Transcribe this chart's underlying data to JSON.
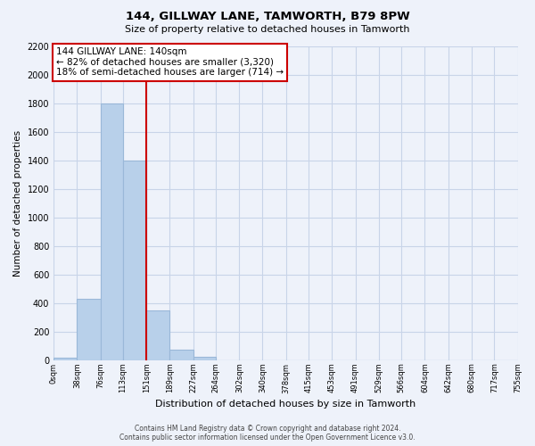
{
  "title": "144, GILLWAY LANE, TAMWORTH, B79 8PW",
  "subtitle": "Size of property relative to detached houses in Tamworth",
  "xlabel": "Distribution of detached houses by size in Tamworth",
  "ylabel": "Number of detached properties",
  "bar_edges": [
    0,
    38,
    76,
    113,
    151,
    189,
    227,
    264,
    302,
    340,
    378,
    415,
    453,
    491,
    529,
    566,
    604,
    642,
    680,
    717,
    755
  ],
  "bar_heights": [
    20,
    430,
    1800,
    1400,
    350,
    75,
    25,
    0,
    0,
    0,
    0,
    0,
    0,
    0,
    0,
    0,
    0,
    0,
    0,
    0
  ],
  "bar_color": "#b8d0ea",
  "bar_edgecolor": "#9ab8d8",
  "grid_color": "#c8d4e8",
  "background_color": "#eef2fa",
  "vline_x": 151,
  "vline_color": "#cc0000",
  "ylim": [
    0,
    2200
  ],
  "yticks": [
    0,
    200,
    400,
    600,
    800,
    1000,
    1200,
    1400,
    1600,
    1800,
    2000,
    2200
  ],
  "xtick_labels": [
    "0sqm",
    "38sqm",
    "76sqm",
    "113sqm",
    "151sqm",
    "189sqm",
    "227sqm",
    "264sqm",
    "302sqm",
    "340sqm",
    "378sqm",
    "415sqm",
    "453sqm",
    "491sqm",
    "529sqm",
    "566sqm",
    "604sqm",
    "642sqm",
    "680sqm",
    "717sqm",
    "755sqm"
  ],
  "annotation_title": "144 GILLWAY LANE: 140sqm",
  "annotation_line1": "← 82% of detached houses are smaller (3,320)",
  "annotation_line2": "18% of semi-detached houses are larger (714) →",
  "annotation_box_color": "#ffffff",
  "annotation_box_edgecolor": "#cc0000",
  "footer_line1": "Contains HM Land Registry data © Crown copyright and database right 2024.",
  "footer_line2": "Contains public sector information licensed under the Open Government Licence v3.0."
}
